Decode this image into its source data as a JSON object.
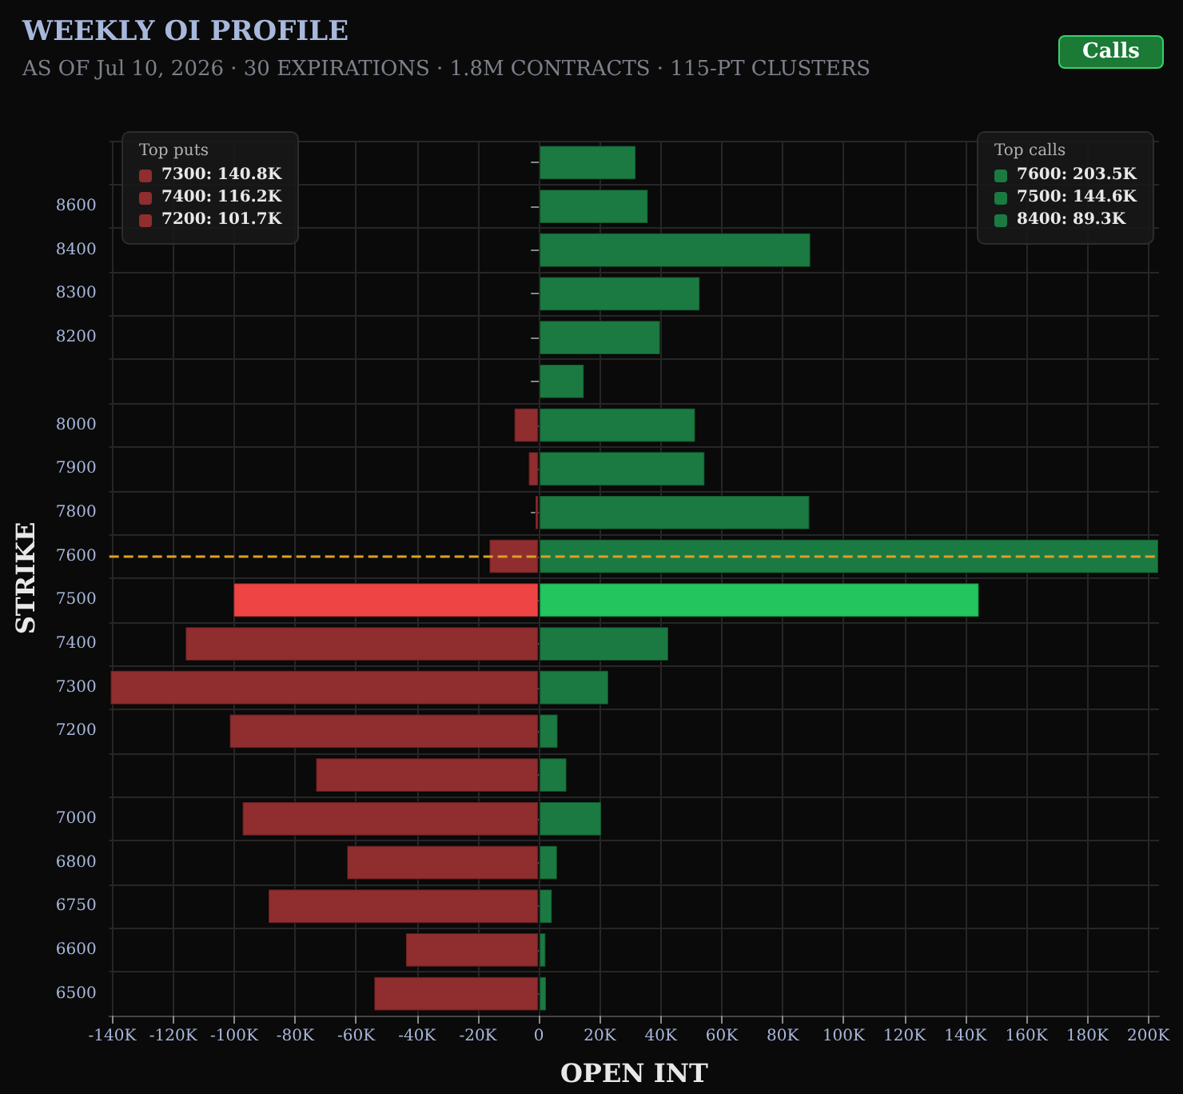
{
  "chart_data": {
    "type": "bar",
    "orientation": "horizontal",
    "title": "WEEKLY OI PROFILE",
    "subtitle": "AS OF Jul 10, 2026 · 30 EXPIRATIONS · 1.8M CONTRACTS · 115-PT CLUSTERS",
    "xlabel": "OPEN INT",
    "ylabel": "STRIKE",
    "categories": [
      null,
      "8600",
      "8400",
      "8300",
      "8200",
      null,
      "8000",
      "7900",
      "7800",
      "7600",
      "7500",
      "7400",
      "7300",
      "7200",
      null,
      "7000",
      "6800",
      "6750",
      "6600",
      "6500"
    ],
    "series": [
      {
        "color": "#1b7a42",
        "colors": [
          "#1b7a42",
          "#1b7a42",
          "#1b7a42",
          "#1b7a42",
          "#1b7a42",
          "#1b7a42",
          "#1b7a42",
          "#1b7a42",
          "#1b7a42",
          "#1b7a42",
          "#22c55e",
          "#1b7a42",
          "#1b7a42",
          "#1b7a42",
          "#1b7a42",
          "#1b7a42",
          "#1b7a42",
          "#1b7a42",
          "#1b7a42",
          "#1b7a42"
        ],
        "values": [
          32000,
          36000,
          89300,
          53000,
          40000,
          15000,
          51500,
          54600,
          89000,
          203500,
          144600,
          42700,
          23000,
          6400,
          9300,
          20700,
          6200,
          4500,
          2400,
          2600
        ]
      },
      {
        "color": "#8f2d2f",
        "colors": [
          "#8f2d2f",
          "#8f2d2f",
          "#8f2d2f",
          "#8f2d2f",
          "#8f2d2f",
          "#8f2d2f",
          "#8f2d2f",
          "#8f2d2f",
          "#8f2d2f",
          "#8f2d2f",
          "#ef4444",
          "#8f2d2f",
          "#8f2d2f",
          "#8f2d2f",
          "#8f2d2f",
          "#8f2d2f",
          "#8f2d2f",
          "#8f2d2f",
          "#8f2d2f",
          "#8f2d2f"
        ],
        "values": [
          null,
          null,
          null,
          null,
          null,
          null,
          -8300,
          -3600,
          -1400,
          -16500,
          -100400,
          -116200,
          -140800,
          -101700,
          -73400,
          -97500,
          -63200,
          -89000,
          -43900,
          -54300
        ]
      }
    ],
    "xlim": [
      -141000,
      203500
    ],
    "xticks": [
      {
        "value": -140000,
        "label": "-140K"
      },
      {
        "value": -120000,
        "label": "-120K"
      },
      {
        "value": -100000,
        "label": "-100K"
      },
      {
        "value": -80000,
        "label": "-80K"
      },
      {
        "value": -60000,
        "label": "-60K"
      },
      {
        "value": -40000,
        "label": "-40K"
      },
      {
        "value": -20000,
        "label": "-20K"
      },
      0,
      {
        "value": 20000,
        "label": "20K"
      },
      {
        "value": 40000,
        "label": "40K"
      },
      {
        "value": 60000,
        "label": "60K"
      },
      {
        "value": 80000,
        "label": "80K"
      },
      {
        "value": 100000,
        "label": "100K"
      },
      {
        "value": 120000,
        "label": "120K"
      },
      {
        "value": 140000,
        "label": "140K"
      },
      {
        "value": 160000,
        "label": "160K"
      },
      {
        "value": 180000,
        "label": "180K"
      },
      {
        "value": 200000,
        "label": "200K"
      }
    ],
    "ref_lines": [
      {
        "axis": "y",
        "value": "7600",
        "color": "#e0a020",
        "line_style": "dashed"
      }
    ],
    "grid": true,
    "stacked": true,
    "annotations": [
      "Top puts",
      "7300: 140.8K",
      "7400: 116.2K",
      "7200: 101.7K",
      "Top calls",
      "7600: 203.5K",
      "7500: 144.6K",
      "8400: 89.3K",
      "Calls"
    ]
  }
}
